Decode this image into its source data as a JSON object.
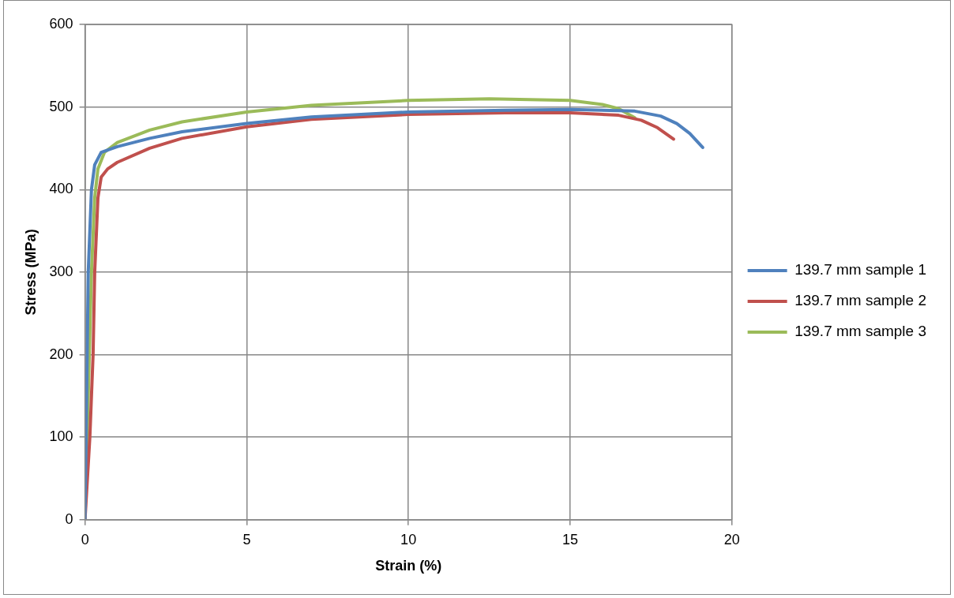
{
  "chart_data": {
    "type": "line",
    "xlabel": "Strain (%)",
    "ylabel": "Stress (MPa)",
    "xlim": [
      0,
      20
    ],
    "xticks": [
      0,
      5,
      10,
      15,
      20
    ],
    "ylim": [
      0,
      600
    ],
    "yticks": [
      0,
      100,
      200,
      300,
      400,
      500,
      600
    ],
    "grid": true,
    "legend": "right",
    "marker": "none",
    "line_style": "solid",
    "series": [
      {
        "name": "139.7 mm sample 1",
        "color": "#4f81bd",
        "x": [
          0,
          0.05,
          0.1,
          0.2,
          0.3,
          0.5,
          1,
          2,
          3,
          5,
          7,
          10,
          13,
          15,
          17,
          17.8,
          18.3,
          18.7,
          19.1
        ],
        "values": [
          0,
          150,
          300,
          400,
          430,
          445,
          452,
          462,
          470,
          480,
          488,
          494,
          496,
          497,
          495,
          489,
          480,
          468,
          451
        ]
      },
      {
        "name": "139.7 mm sample 2",
        "color": "#c0504d",
        "x": [
          0,
          0.15,
          0.25,
          0.3,
          0.4,
          0.5,
          0.7,
          1,
          2,
          3,
          5,
          7,
          10,
          13,
          15,
          16.5,
          17.2,
          17.7,
          18.2
        ],
        "values": [
          0,
          100,
          200,
          300,
          390,
          415,
          425,
          433,
          450,
          462,
          476,
          485,
          491,
          493,
          493,
          490,
          484,
          475,
          461
        ]
      },
      {
        "name": "139.7 mm sample 3",
        "color": "#9bbb59",
        "x": [
          0,
          0.1,
          0.2,
          0.3,
          0.4,
          0.6,
          1,
          2,
          3,
          5,
          7,
          10,
          12.5,
          15,
          16,
          16.5,
          17
        ],
        "values": [
          0,
          150,
          300,
          390,
          425,
          445,
          457,
          472,
          482,
          494,
          502,
          508,
          510,
          508,
          503,
          498,
          487
        ]
      }
    ]
  }
}
